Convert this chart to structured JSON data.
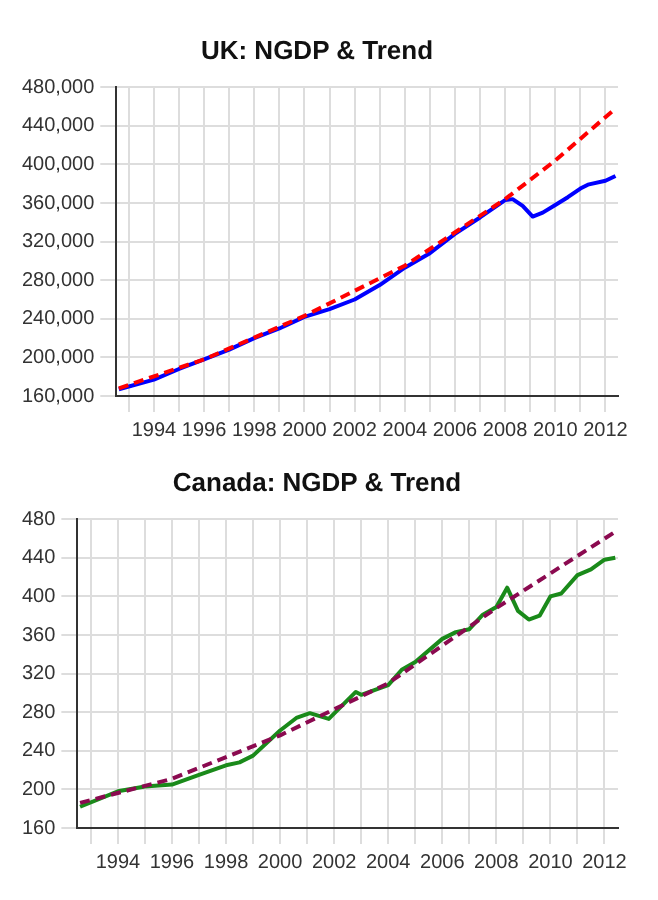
{
  "chart_data": [
    {
      "type": "line",
      "title": "UK: NGDP & Trend",
      "xlim": [
        1992.5,
        2012.5
      ],
      "xticks": [
        {
          "value": 1993,
          "label": null
        },
        1994,
        {
          "value": 1995,
          "label": null
        },
        1996,
        {
          "value": 1997,
          "label": null
        },
        1998,
        {
          "value": 1999,
          "label": null
        },
        2000,
        {
          "value": 2001,
          "label": null
        },
        2002,
        {
          "value": 2003,
          "label": null
        },
        2004,
        {
          "value": 2005,
          "label": null
        },
        2006,
        {
          "value": 2007,
          "label": null
        },
        2008,
        {
          "value": 2009,
          "label": null
        },
        2010,
        {
          "value": 2011,
          "label": null
        },
        2012
      ],
      "ylim": [
        160000,
        480000
      ],
      "yticks": [
        {
          "value": 160000,
          "label": "160,000"
        },
        {
          "value": 200000,
          "label": "200,000"
        },
        {
          "value": 240000,
          "label": "240,000"
        },
        {
          "value": 280000,
          "label": "280,000"
        },
        {
          "value": 320000,
          "label": "320,000"
        },
        {
          "value": 360000,
          "label": "360,000"
        },
        {
          "value": 400000,
          "label": "400,000"
        },
        {
          "value": 440000,
          "label": "440,000"
        },
        {
          "value": 480000,
          "label": "480,000"
        }
      ],
      "grid": true,
      "legend": false,
      "marker": "none",
      "series": [
        {
          "color": "#ff0000",
          "line_style": "dashed",
          "x": [
            1992.6,
            1996,
            2000,
            2004,
            2008,
            2010,
            2012.4
          ],
          "values": [
            168000,
            198000,
            243000,
            295000,
            364000,
            404000,
            458000
          ]
        },
        {
          "color": "#0000ff",
          "line_style": "solid",
          "x": [
            1992.6,
            1994,
            1995,
            1996,
            1997,
            1998,
            1999,
            2000,
            2001,
            2002,
            2003,
            2004,
            2005,
            2006,
            2007,
            2008,
            2008.3,
            2008.7,
            2009.1,
            2009.5,
            2010,
            2010.5,
            2011,
            2011.3,
            2012,
            2012.4
          ],
          "values": [
            167000,
            177000,
            188000,
            198000,
            208000,
            220000,
            230000,
            242000,
            250000,
            260000,
            275000,
            293000,
            308000,
            328000,
            345000,
            363000,
            364000,
            357000,
            346000,
            350000,
            358000,
            366000,
            375000,
            379000,
            383000,
            388000
          ]
        }
      ]
    },
    {
      "type": "line",
      "title": "Canada: NGDP & Trend",
      "xlim": [
        1992.5,
        2012.5
      ],
      "xticks": [
        {
          "value": 1993,
          "label": null
        },
        1994,
        {
          "value": 1995,
          "label": null
        },
        1996,
        {
          "value": 1997,
          "label": null
        },
        1998,
        {
          "value": 1999,
          "label": null
        },
        2000,
        {
          "value": 2001,
          "label": null
        },
        2002,
        {
          "value": 2003,
          "label": null
        },
        2004,
        {
          "value": 2005,
          "label": null
        },
        2006,
        {
          "value": 2007,
          "label": null
        },
        2008,
        {
          "value": 2009,
          "label": null
        },
        2010,
        {
          "value": 2011,
          "label": null
        },
        2012
      ],
      "ylim": [
        160,
        480
      ],
      "yticks": [
        160,
        200,
        240,
        280,
        320,
        360,
        400,
        440,
        480
      ],
      "grid": true,
      "legend": false,
      "marker": "none",
      "series": [
        {
          "color": "#8b0a50",
          "line_style": "dashed",
          "x": [
            1992.6,
            1996,
            2000,
            2004,
            2008,
            2012.4
          ],
          "values": [
            186,
            211,
            256,
            310,
            388,
            467
          ]
        },
        {
          "color": "#1a8a1a",
          "line_style": "solid",
          "x": [
            1992.6,
            1994,
            1995,
            1996,
            1997,
            1998,
            1998.5,
            1999,
            2000,
            2000.6,
            2001.1,
            2001.8,
            2002.8,
            2003,
            2004,
            2004.5,
            2005,
            2006,
            2006.5,
            2007,
            2007.5,
            2008,
            2008.4,
            2008.8,
            2009.2,
            2009.6,
            2010,
            2010.4,
            2011,
            2011.5,
            2012,
            2012.4
          ],
          "values": [
            182,
            198,
            203,
            205,
            215,
            225,
            228,
            235,
            261,
            274,
            279,
            273,
            301,
            298,
            308,
            324,
            332,
            356,
            363,
            366,
            381,
            389,
            409,
            385,
            376,
            380,
            400,
            403,
            422,
            428,
            438,
            440
          ]
        }
      ]
    }
  ]
}
